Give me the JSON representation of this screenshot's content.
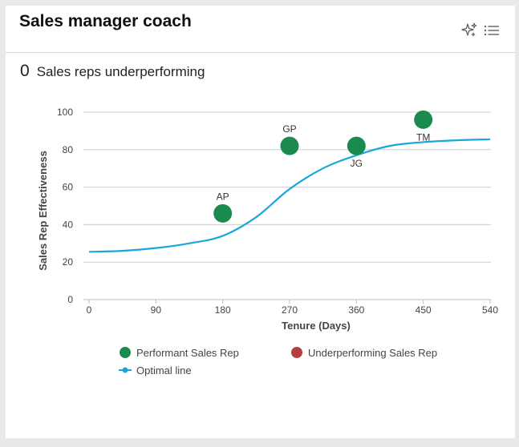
{
  "card": {
    "title": "Sales manager coach"
  },
  "header_icons": [
    "sparkle-icon",
    "list-icon"
  ],
  "summary": {
    "count": "0",
    "label": "Sales reps underperforming"
  },
  "colors": {
    "performant": "#1b8a4f",
    "underperforming": "#b53f3f",
    "optimal_line": "#1aa7dc",
    "grid": "#cccccc"
  },
  "chart_data": {
    "type": "scatter",
    "xlabel": "Tenure (Days)",
    "ylabel": "Sales Rep Effectiveness",
    "xlim": [
      0,
      540
    ],
    "ylim": [
      0,
      100
    ],
    "x_ticks": [
      0,
      90,
      180,
      270,
      360,
      450,
      540
    ],
    "y_ticks": [
      0,
      20,
      40,
      60,
      80,
      100
    ],
    "grid": "horizontal",
    "series": [
      {
        "name": "Performant Sales Rep",
        "points": [
          {
            "label": "AP",
            "x": 180,
            "y": 46
          },
          {
            "label": "GP",
            "x": 270,
            "y": 82
          },
          {
            "label": "JG",
            "x": 360,
            "y": 82
          },
          {
            "label": "TM",
            "x": 450,
            "y": 96
          }
        ]
      },
      {
        "name": "Underperforming Sales Rep",
        "points": []
      },
      {
        "name": "Optimal line",
        "type": "line",
        "x": [
          0,
          45,
          90,
          135,
          180,
          225,
          270,
          315,
          360,
          405,
          450,
          495,
          540
        ],
        "y": [
          25.5,
          26,
          27.5,
          30,
          34,
          44,
          59,
          70,
          77,
          82,
          84,
          85,
          85.5
        ]
      }
    ],
    "legend": {
      "position": "bottom",
      "items": [
        "Performant Sales Rep",
        "Underperforming Sales Rep",
        "Optimal line"
      ]
    }
  }
}
